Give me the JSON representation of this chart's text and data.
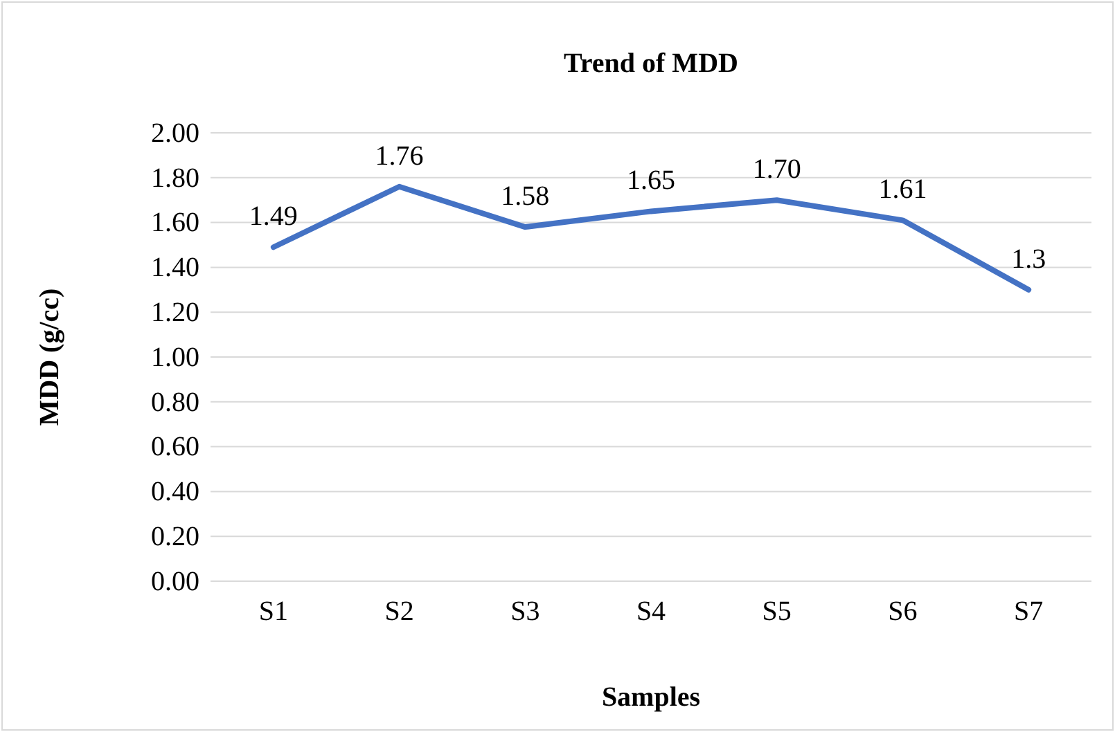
{
  "chart_data": {
    "type": "line",
    "title": "Trend of MDD",
    "xlabel": "Samples",
    "ylabel": "MDD (g/cc)",
    "categories": [
      "S1",
      "S2",
      "S3",
      "S4",
      "S5",
      "S6",
      "S7"
    ],
    "series": [
      {
        "color": "#4472c4",
        "values": [
          1.49,
          1.76,
          1.58,
          1.65,
          1.7,
          1.61,
          1.3
        ],
        "value_labels": [
          "1.49",
          "1.76",
          "1.58",
          "1.65",
          "1.70",
          "1.61",
          "1.3"
        ]
      }
    ],
    "ylim": [
      0,
      2
    ],
    "yticks": [
      {
        "value": 0,
        "label": "0.00"
      },
      {
        "value": 0.2,
        "label": "0.20"
      },
      {
        "value": 0.4,
        "label": "0.40"
      },
      {
        "value": 0.6,
        "label": "0.60"
      },
      {
        "value": 0.8,
        "label": "0.80"
      },
      {
        "value": 1,
        "label": "1.00"
      },
      {
        "value": 1.2,
        "label": "1.20"
      },
      {
        "value": 1.4,
        "label": "1.40"
      },
      {
        "value": 1.6,
        "label": "1.60"
      },
      {
        "value": 1.8,
        "label": "1.80"
      },
      {
        "value": 2,
        "label": "2.00"
      }
    ],
    "grid": "y",
    "marker": "none",
    "line_style": "solid"
  }
}
